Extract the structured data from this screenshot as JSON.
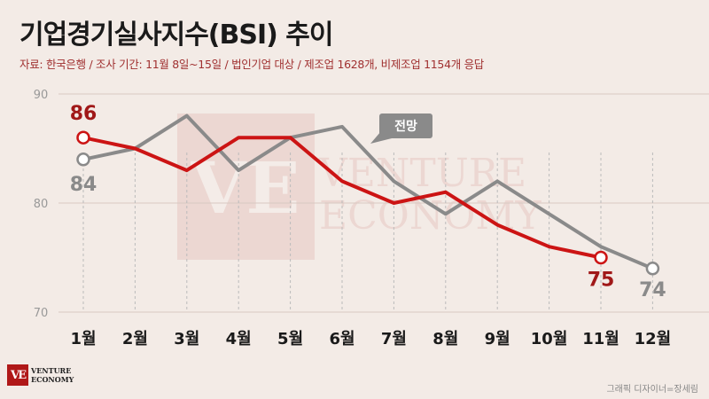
{
  "title": "기업경기실사지수(BSI) 추이",
  "subtitle": "자료: 한국은행 / 조사 기간: 11월 8일~15일 / 법인기업 대상 / 제조업 1628개, 비제조업 1154개 응답",
  "logo": {
    "line1": "VENTURE",
    "line2": "ECONOMY",
    "mark": "VE"
  },
  "watermark": {
    "line1": "VENTURE",
    "line2": "ECONOMY",
    "mark": "VE"
  },
  "credit": "그래픽 디자이너=장세림",
  "colors": {
    "actual": "#cc1414",
    "forecast": "#8a8a8a",
    "background": "#f3ebe6"
  },
  "chart_data": {
    "type": "line",
    "categories": [
      "1월",
      "2월",
      "3월",
      "4월",
      "5월",
      "6월",
      "7월",
      "8월",
      "9월",
      "10월",
      "11월",
      "12월"
    ],
    "ylim": [
      70,
      90
    ],
    "yticks": [
      70,
      80,
      90
    ],
    "grid": true,
    "series": [
      {
        "name": "",
        "key": "actual",
        "values": [
          86,
          85,
          83,
          86,
          86,
          82,
          80,
          81,
          78,
          76,
          75,
          null
        ],
        "labels": [
          {
            "index": 0,
            "text": "86"
          },
          {
            "index": 10,
            "text": "75"
          }
        ]
      },
      {
        "name": "전망",
        "key": "forecast",
        "values": [
          84,
          85,
          88,
          83,
          86,
          87,
          82,
          79,
          82,
          79,
          76,
          74
        ],
        "labels": [
          {
            "index": 0,
            "text": "84"
          },
          {
            "index": 11,
            "text": "74"
          }
        ]
      }
    ]
  }
}
